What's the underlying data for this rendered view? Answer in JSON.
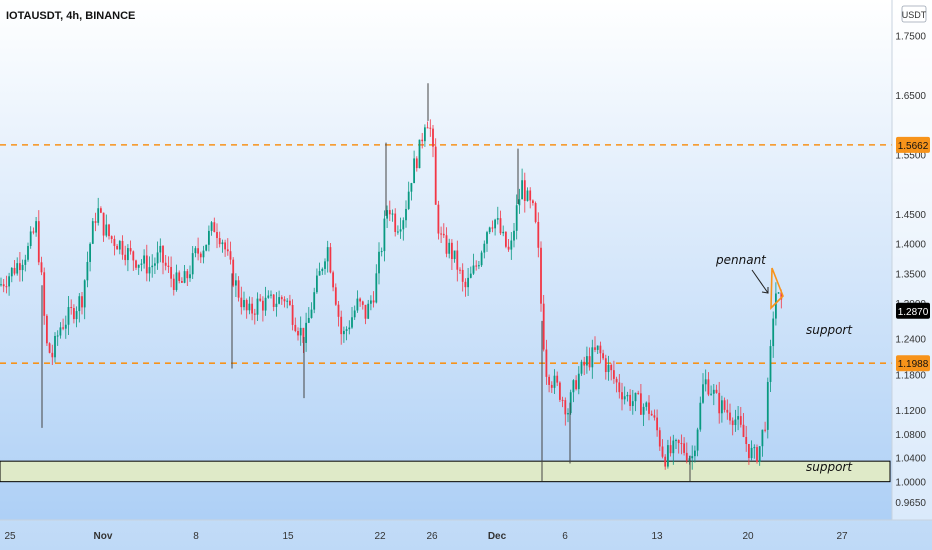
{
  "header": {
    "symbol_text": "IOTAUSDT, 4h, BINANCE"
  },
  "axis": {
    "currency_label": "USDT"
  },
  "colors": {
    "bg_top": "#ffffff",
    "bg_bottom": "#a9cdf5",
    "up": "#089981",
    "down": "#f23645",
    "level": "#f7931a",
    "support_zone": "#dfeac8",
    "last_price_bg": "#000000"
  },
  "annotations": {
    "pennant": "pennant",
    "support_upper": "support",
    "support_lower": "support"
  },
  "chart_data": {
    "type": "candlestick",
    "title": "IOTAUSDT, 4h, BINANCE",
    "price_range": [
      0.935,
      1.81
    ],
    "y_ticks": [
      "1.7500",
      "1.6500",
      "1.5500",
      "1.4500",
      "1.4000",
      "1.3500",
      "1.3000",
      "1.2400",
      "1.1800",
      "1.1200",
      "1.0800",
      "1.0400",
      "1.0000",
      "0.9650"
    ],
    "x_ticks": [
      "25",
      "Nov",
      "8",
      "15",
      "22",
      "26",
      "Dec",
      "6",
      "13",
      "20",
      "27"
    ],
    "levels": [
      {
        "price": 1.5662,
        "label": "1.5662",
        "style": "dashed"
      },
      {
        "price": 1.1988,
        "label": "1.1988",
        "style": "dashed"
      }
    ],
    "last_price": {
      "price": 1.287,
      "label": "1.2870"
    },
    "support_zone": [
      0.9995,
      1.034
    ],
    "path_points": [
      [
        0,
        1.33
      ],
      [
        15,
        1.36
      ],
      [
        28,
        1.39
      ],
      [
        36,
        1.43
      ],
      [
        42,
        1.33
      ],
      [
        46,
        1.23
      ],
      [
        52,
        1.21
      ],
      [
        60,
        1.26
      ],
      [
        70,
        1.28
      ],
      [
        82,
        1.31
      ],
      [
        90,
        1.4
      ],
      [
        97,
        1.46
      ],
      [
        103,
        1.43
      ],
      [
        110,
        1.41
      ],
      [
        120,
        1.4
      ],
      [
        130,
        1.38
      ],
      [
        140,
        1.37
      ],
      [
        150,
        1.36
      ],
      [
        160,
        1.38
      ],
      [
        172,
        1.34
      ],
      [
        180,
        1.33
      ],
      [
        186,
        1.34
      ],
      [
        195,
        1.38
      ],
      [
        205,
        1.4
      ],
      [
        214,
        1.43
      ],
      [
        222,
        1.41
      ],
      [
        230,
        1.36
      ],
      [
        240,
        1.31
      ],
      [
        248,
        1.28
      ],
      [
        258,
        1.3
      ],
      [
        270,
        1.3
      ],
      [
        285,
        1.31
      ],
      [
        298,
        1.26
      ],
      [
        305,
        1.24
      ],
      [
        312,
        1.3
      ],
      [
        320,
        1.35
      ],
      [
        327,
        1.4
      ],
      [
        335,
        1.32
      ],
      [
        342,
        1.24
      ],
      [
        350,
        1.27
      ],
      [
        358,
        1.3
      ],
      [
        366,
        1.28
      ],
      [
        374,
        1.32
      ],
      [
        382,
        1.4
      ],
      [
        388,
        1.47
      ],
      [
        396,
        1.43
      ],
      [
        404,
        1.45
      ],
      [
        412,
        1.52
      ],
      [
        420,
        1.56
      ],
      [
        426,
        1.62
      ],
      [
        432,
        1.58
      ],
      [
        436,
        1.45
      ],
      [
        442,
        1.4
      ],
      [
        450,
        1.39
      ],
      [
        458,
        1.36
      ],
      [
        464,
        1.32
      ],
      [
        470,
        1.34
      ],
      [
        478,
        1.37
      ],
      [
        484,
        1.41
      ],
      [
        490,
        1.44
      ],
      [
        496,
        1.44
      ],
      [
        502,
        1.41
      ],
      [
        510,
        1.38
      ],
      [
        516,
        1.45
      ],
      [
        522,
        1.5
      ],
      [
        528,
        1.47
      ],
      [
        534,
        1.45
      ],
      [
        538,
        1.39
      ],
      [
        542,
        1.27
      ],
      [
        546,
        1.19
      ],
      [
        552,
        1.17
      ],
      [
        560,
        1.15
      ],
      [
        568,
        1.12
      ],
      [
        576,
        1.17
      ],
      [
        586,
        1.2
      ],
      [
        598,
        1.22
      ],
      [
        608,
        1.19
      ],
      [
        618,
        1.16
      ],
      [
        628,
        1.14
      ],
      [
        640,
        1.13
      ],
      [
        650,
        1.12
      ],
      [
        658,
        1.08
      ],
      [
        664,
        1.04
      ],
      [
        672,
        1.05
      ],
      [
        680,
        1.06
      ],
      [
        686,
        1.05
      ],
      [
        692,
        1.04
      ],
      [
        698,
        1.1
      ],
      [
        704,
        1.17
      ],
      [
        710,
        1.16
      ],
      [
        718,
        1.13
      ],
      [
        726,
        1.12
      ],
      [
        734,
        1.11
      ],
      [
        742,
        1.08
      ],
      [
        750,
        1.05
      ],
      [
        755,
        1.04
      ],
      [
        760,
        1.06
      ],
      [
        766,
        1.11
      ],
      [
        770,
        1.2
      ],
      [
        773,
        1.28
      ],
      [
        776,
        1.32
      ],
      [
        782,
        1.287
      ]
    ],
    "spikes": [
      [
        42,
        1.09
      ],
      [
        232,
        1.19
      ],
      [
        304,
        1.14
      ],
      [
        542,
        1.0
      ],
      [
        570,
        1.03
      ],
      [
        690,
        1.0
      ],
      [
        428,
        1.67
      ],
      [
        386,
        1.57
      ],
      [
        518,
        1.56
      ]
    ]
  }
}
